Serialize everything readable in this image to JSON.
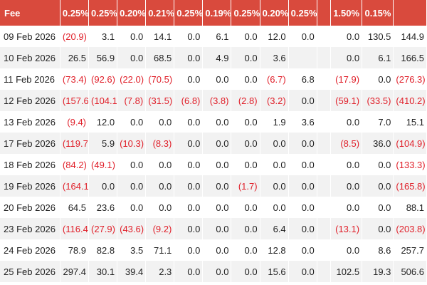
{
  "table": {
    "columns": [
      "Fee",
      "0.25%",
      "0.25%",
      "0.20%",
      "0.21%",
      "0.25%",
      "0.19%",
      "0.25%",
      "0.20%",
      "0.25%",
      "",
      "1.50%",
      "0.15%",
      ""
    ],
    "rows": [
      {
        "date": "09 Feb 2026",
        "cells": [
          "(20.9)",
          "3.1",
          "0.0",
          "14.1",
          "0.0",
          "6.1",
          "0.0",
          "12.0",
          "0.0",
          "",
          "0.0",
          "130.5",
          "144.9"
        ]
      },
      {
        "date": "10 Feb 2026",
        "cells": [
          "26.5",
          "56.9",
          "0.0",
          "68.5",
          "0.0",
          "4.9",
          "0.0",
          "3.6",
          "",
          "",
          "0.0",
          "6.1",
          "166.5"
        ]
      },
      {
        "date": "11 Feb 2026",
        "cells": [
          "(73.4)",
          "(92.6)",
          "(22.0)",
          "(70.5)",
          "0.0",
          "0.0",
          "0.0",
          "(6.7)",
          "6.8",
          "",
          "(17.9)",
          "0.0",
          "(276.3)"
        ]
      },
      {
        "date": "12 Feb 2026",
        "cells": [
          "(157.6)",
          "(104.1)",
          "(7.8)",
          "(31.5)",
          "(6.8)",
          "(3.8)",
          "(2.8)",
          "(3.2)",
          "0.0",
          "",
          "(59.1)",
          "(33.5)",
          "(410.2)"
        ]
      },
      {
        "date": "13 Feb 2026",
        "cells": [
          "(9.4)",
          "12.0",
          "0.0",
          "0.0",
          "0.0",
          "0.0",
          "0.0",
          "1.9",
          "3.6",
          "",
          "0.0",
          "7.0",
          "15.1"
        ]
      },
      {
        "date": "17 Feb 2026",
        "cells": [
          "(119.7)",
          "5.9",
          "(10.3)",
          "(8.3)",
          "0.0",
          "0.0",
          "0.0",
          "0.0",
          "0.0",
          "",
          "(8.5)",
          "36.0",
          "(104.9)"
        ]
      },
      {
        "date": "18 Feb 2026",
        "cells": [
          "(84.2)",
          "(49.1)",
          "0.0",
          "0.0",
          "0.0",
          "0.0",
          "0.0",
          "0.0",
          "0.0",
          "",
          "0.0",
          "0.0",
          "(133.3)"
        ]
      },
      {
        "date": "19 Feb 2026",
        "cells": [
          "(164.1)",
          "0.0",
          "0.0",
          "0.0",
          "0.0",
          "0.0",
          "(1.7)",
          "0.0",
          "0.0",
          "",
          "0.0",
          "0.0",
          "(165.8)"
        ]
      },
      {
        "date": "20 Feb 2026",
        "cells": [
          "64.5",
          "23.6",
          "0.0",
          "0.0",
          "0.0",
          "0.0",
          "0.0",
          "0.0",
          "0.0",
          "",
          "0.0",
          "0.0",
          "88.1"
        ]
      },
      {
        "date": "23 Feb 2026",
        "cells": [
          "(116.4)",
          "(27.9)",
          "(43.6)",
          "(9.2)",
          "0.0",
          "0.0",
          "0.0",
          "6.4",
          "0.0",
          "",
          "(13.1)",
          "0.0",
          "(203.8)"
        ]
      },
      {
        "date": "24 Feb 2026",
        "cells": [
          "78.9",
          "82.8",
          "3.5",
          "71.1",
          "0.0",
          "0.0",
          "0.0",
          "12.8",
          "0.0",
          "",
          "0.0",
          "8.6",
          "257.7"
        ]
      },
      {
        "date": "25 Feb 2026",
        "cells": [
          "297.4",
          "30.1",
          "39.4",
          "2.3",
          "0.0",
          "0.0",
          "0.0",
          "15.6",
          "0.0",
          "",
          "102.5",
          "19.3",
          "506.6"
        ]
      }
    ]
  },
  "colors": {
    "header_bg": "#d94a3d",
    "header_text": "#ffffff",
    "negative_text": "#e0202a",
    "stripe": "#f2f2f2"
  }
}
